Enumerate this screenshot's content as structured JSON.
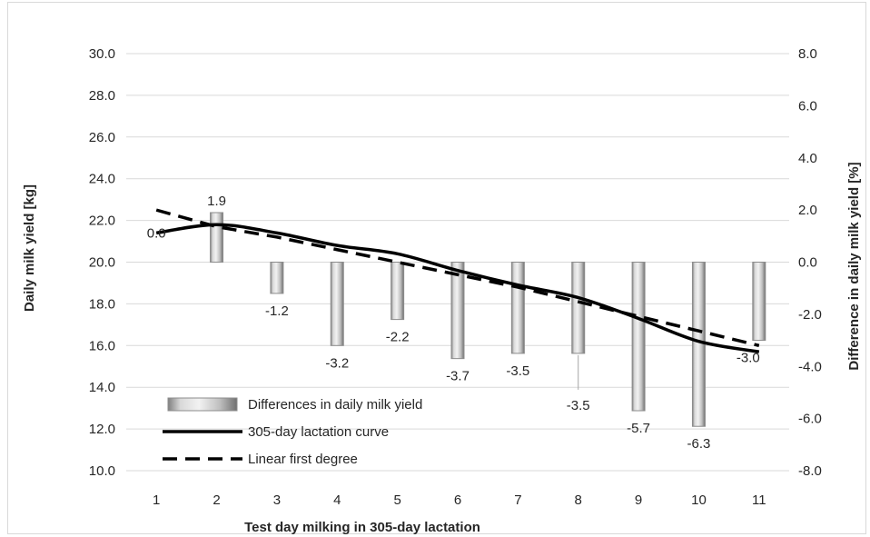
{
  "chart_data": {
    "type": "bar",
    "categories": [
      "1",
      "2",
      "3",
      "4",
      "5",
      "6",
      "7",
      "8",
      "9",
      "10",
      "11"
    ],
    "xlabel": "Test day milking in 305-day lactation",
    "ylabel": "Daily milk yield [kg]",
    "y2label": "Difference in daily milk yield [%]",
    "ylim": [
      10,
      30
    ],
    "y2lim": [
      -8,
      8
    ],
    "yticks": [
      "10.0",
      "12.0",
      "14.0",
      "16.0",
      "18.0",
      "20.0",
      "22.0",
      "24.0",
      "26.0",
      "28.0",
      "30.0"
    ],
    "y2ticks": [
      "-8.0",
      "-6.0",
      "-4.0",
      "-2.0",
      "0.0",
      "2.0",
      "4.0",
      "6.0",
      "8.0"
    ],
    "grid": "horizontal",
    "legend": "bottom-left",
    "series": [
      {
        "name": "Differences in daily milk yield",
        "type": "bar",
        "axis": "right",
        "values": [
          0.0,
          1.9,
          -1.2,
          -3.2,
          -2.2,
          -3.7,
          -3.5,
          -3.5,
          -5.7,
          -6.3,
          -3.0
        ],
        "labels": [
          "0.0",
          "1.9",
          "-1.2",
          "-3.2",
          "-2.2",
          "-3.7",
          "-3.5",
          "-3.5",
          "-5.7",
          "-6.3",
          "-3.0"
        ],
        "color": "#bfbfbf"
      },
      {
        "name": "305-day lactation curve",
        "type": "line",
        "axis": "left",
        "values": [
          21.4,
          21.8,
          21.4,
          20.8,
          20.4,
          19.6,
          18.9,
          18.3,
          17.3,
          16.2,
          15.7
        ],
        "color": "#000000",
        "dash": "solid"
      },
      {
        "name": "Linear first degree",
        "type": "line",
        "axis": "left",
        "values": [
          22.5,
          21.7,
          21.2,
          20.6,
          20.0,
          19.4,
          18.8,
          18.1,
          17.4,
          16.7,
          16.0
        ],
        "color": "#000000",
        "dash": "dashed"
      }
    ]
  }
}
